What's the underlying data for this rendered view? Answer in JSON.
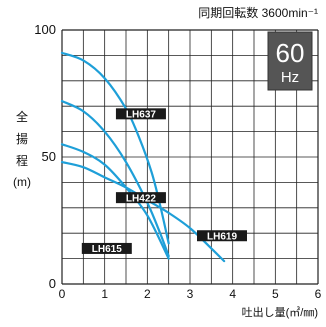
{
  "header": {
    "speed_label": "同期回転数 3600min⁻¹"
  },
  "badge": {
    "line1": "60",
    "line2": "Hz"
  },
  "chart_data": {
    "type": "line",
    "title": "",
    "xlabel": "吐出し量(㎥/㎜)",
    "ylabel_chars": [
      "全",
      "揚",
      "程",
      "(m)"
    ],
    "xlim": [
      0,
      6
    ],
    "ylim": [
      0,
      100
    ],
    "x_ticks": [
      "0",
      "1",
      "2",
      "3",
      "4",
      "5",
      "6"
    ],
    "y_ticks": [
      "0",
      "50",
      "100"
    ],
    "grid": true,
    "colors": {
      "curve": "#1e9fd8",
      "grid": "#222222",
      "label_bg": "#1a1a1a",
      "label_text": "#ffffff",
      "badge_bg": "#555555"
    },
    "series": [
      {
        "name": "LH637",
        "x": [
          0,
          0.5,
          1.0,
          1.5,
          1.8,
          2.1,
          2.3,
          2.5
        ],
        "y": [
          91,
          88,
          81,
          69,
          58,
          44,
          31,
          16
        ]
      },
      {
        "name": "LH422",
        "x": [
          0,
          0.5,
          1.0,
          1.5,
          2.0,
          2.3,
          2.5
        ],
        "y": [
          72,
          68,
          60,
          48,
          32,
          20,
          11
        ]
      },
      {
        "name": "LH619",
        "x": [
          0,
          0.5,
          1.0,
          1.5,
          2.0,
          2.5,
          3.0,
          3.5,
          3.8
        ],
        "y": [
          48,
          46,
          42,
          38,
          33,
          28,
          22,
          14,
          9
        ]
      },
      {
        "name": "LH615",
        "x": [
          0,
          0.5,
          1.0,
          1.5,
          2.0,
          2.5
        ],
        "y": [
          55,
          52,
          47,
          38,
          27,
          10
        ]
      }
    ]
  }
}
